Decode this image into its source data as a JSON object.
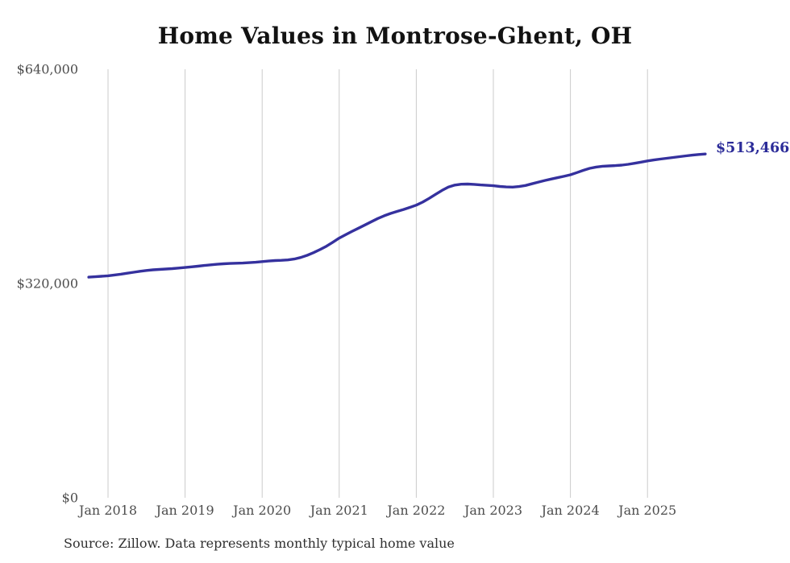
{
  "chart_data": {
    "type": "line",
    "title": "Home Values in Montrose-Ghent, OH",
    "source_note": "Source: Zillow. Data represents monthly typical home value",
    "end_label": "$513,466",
    "final_value": 513466,
    "legend": "none",
    "grid": "vertical-only",
    "y_axis": {
      "range": [
        0,
        640000
      ],
      "ticks": [
        {
          "value": 640000,
          "label": "$640,000"
        },
        {
          "value": 320000,
          "label": "$320,000"
        },
        {
          "value": 0,
          "label": "$0"
        }
      ]
    },
    "x_axis": {
      "ticks": [
        {
          "month": "2018-01",
          "label": "Jan 2018"
        },
        {
          "month": "2019-01",
          "label": "Jan 2019"
        },
        {
          "month": "2020-01",
          "label": "Jan 2020"
        },
        {
          "month": "2021-01",
          "label": "Jan 2021"
        },
        {
          "month": "2022-01",
          "label": "Jan 2022"
        },
        {
          "month": "2023-01",
          "label": "Jan 2023"
        },
        {
          "month": "2024-01",
          "label": "Jan 2024"
        },
        {
          "month": "2025-01",
          "label": "Jan 2025"
        }
      ]
    },
    "series": [
      {
        "name": "Typical home value",
        "color": "#35319e",
        "x": [
          "2017-10",
          "2017-11",
          "2017-12",
          "2018-01",
          "2018-02",
          "2018-03",
          "2018-04",
          "2018-05",
          "2018-06",
          "2018-07",
          "2018-08",
          "2018-09",
          "2018-10",
          "2018-11",
          "2018-12",
          "2019-01",
          "2019-02",
          "2019-03",
          "2019-04",
          "2019-05",
          "2019-06",
          "2019-07",
          "2019-08",
          "2019-09",
          "2019-10",
          "2019-11",
          "2019-12",
          "2020-01",
          "2020-02",
          "2020-03",
          "2020-04",
          "2020-05",
          "2020-06",
          "2020-07",
          "2020-08",
          "2020-09",
          "2020-10",
          "2020-11",
          "2020-12",
          "2021-01",
          "2021-02",
          "2021-03",
          "2021-04",
          "2021-05",
          "2021-06",
          "2021-07",
          "2021-08",
          "2021-09",
          "2021-10",
          "2021-11",
          "2021-12",
          "2022-01",
          "2022-02",
          "2022-03",
          "2022-04",
          "2022-05",
          "2022-06",
          "2022-07",
          "2022-08",
          "2022-09",
          "2022-10",
          "2022-11",
          "2022-12",
          "2023-01",
          "2023-02",
          "2023-03",
          "2023-04",
          "2023-05",
          "2023-06",
          "2023-07",
          "2023-08",
          "2023-09",
          "2023-10",
          "2023-11",
          "2023-12",
          "2024-01",
          "2024-02",
          "2024-03",
          "2024-04",
          "2024-05",
          "2024-06",
          "2024-07",
          "2024-08",
          "2024-09",
          "2024-10",
          "2024-11",
          "2024-12",
          "2025-01",
          "2025-02",
          "2025-03",
          "2025-04",
          "2025-05",
          "2025-06",
          "2025-07",
          "2025-08",
          "2025-09",
          "2025-10"
        ],
        "values": [
          329500,
          330100,
          330800,
          331600,
          332700,
          334000,
          335400,
          336900,
          338300,
          339500,
          340400,
          341000,
          341600,
          342300,
          343100,
          344000,
          344900,
          345900,
          346900,
          347900,
          348800,
          349500,
          350000,
          350300,
          350600,
          351100,
          351800,
          352700,
          353600,
          354300,
          354700,
          355300,
          356600,
          358900,
          362100,
          366100,
          370600,
          375700,
          381600,
          387800,
          392900,
          397800,
          402600,
          407400,
          412300,
          417100,
          421200,
          424700,
          427700,
          430600,
          433700,
          437100,
          441600,
          447100,
          453200,
          459100,
          464000,
          467000,
          468300,
          468600,
          468100,
          467300,
          466600,
          466000,
          465000,
          464200,
          464000,
          464800,
          466400,
          468900,
          471400,
          473900,
          476000,
          478100,
          480100,
          482400,
          485600,
          489000,
          492000,
          494000,
          495100,
          495600,
          496100,
          496900,
          498100,
          499600,
          501300,
          503100,
          504600,
          505900,
          507100,
          508300,
          509500,
          510700,
          511800,
          512700,
          513466
        ]
      }
    ],
    "colors": {
      "line": "#35319e",
      "end_label": "#2c2c99",
      "title": "#121212",
      "axis_text": "#4d4d4d",
      "gridline": "#cbcbcb",
      "source_text": "#303030"
    }
  }
}
